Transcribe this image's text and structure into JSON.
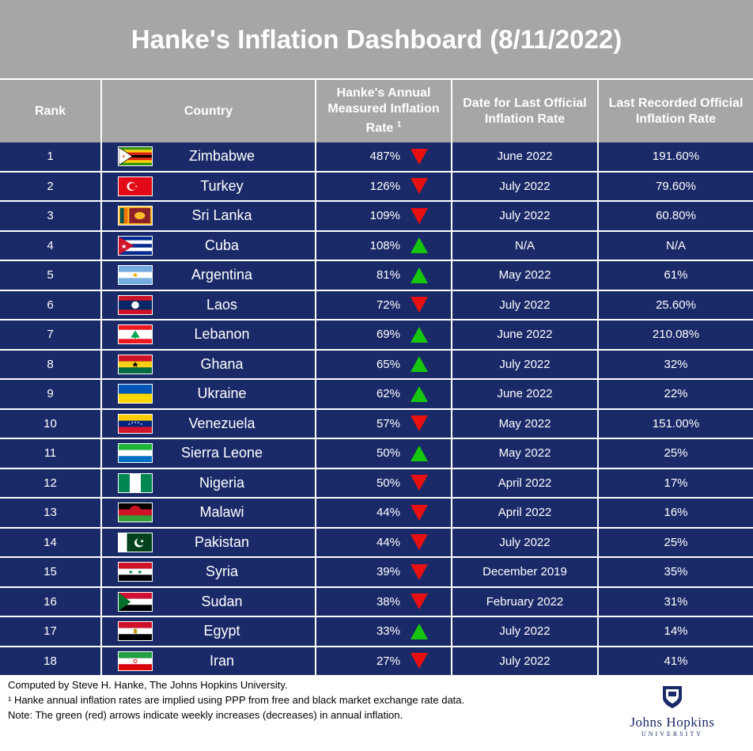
{
  "title": "Hanke's Inflation Dashboard (8/11/2022)",
  "headers": {
    "rank": "Rank",
    "country": "Country",
    "hanke_rate_line1": "Hanke's Annual",
    "hanke_rate_line2": "Measured Inflation",
    "hanke_rate_line3": "Rate",
    "hanke_rate_sup": "1",
    "date_line1": "Date for Last Official",
    "date_line2": "Inflation Rate",
    "official_line1": "Last Recorded Official",
    "official_line2": "Inflation Rate"
  },
  "rows": [
    {
      "rank": "1",
      "country": "Zimbabwe",
      "flag": "zimbabwe-flag",
      "hanke": "487%",
      "trend": "down",
      "date": "June 2022",
      "official": "191.60%"
    },
    {
      "rank": "2",
      "country": "Turkey",
      "flag": "turkey-flag",
      "hanke": "126%",
      "trend": "down",
      "date": "July 2022",
      "official": "79.60%"
    },
    {
      "rank": "3",
      "country": "Sri Lanka",
      "flag": "sri-lanka-flag",
      "hanke": "109%",
      "trend": "down",
      "date": "July 2022",
      "official": "60.80%"
    },
    {
      "rank": "4",
      "country": "Cuba",
      "flag": "cuba-flag",
      "hanke": "108%",
      "trend": "up",
      "date": "N/A",
      "official": "N/A"
    },
    {
      "rank": "5",
      "country": "Argentina",
      "flag": "argentina-flag",
      "hanke": "81%",
      "trend": "up",
      "date": "May 2022",
      "official": "61%"
    },
    {
      "rank": "6",
      "country": "Laos",
      "flag": "laos-flag",
      "hanke": "72%",
      "trend": "down",
      "date": "July 2022",
      "official": "25.60%"
    },
    {
      "rank": "7",
      "country": "Lebanon",
      "flag": "lebanon-flag",
      "hanke": "69%",
      "trend": "up",
      "date": "June 2022",
      "official": "210.08%"
    },
    {
      "rank": "8",
      "country": "Ghana",
      "flag": "ghana-flag",
      "hanke": "65%",
      "trend": "up",
      "date": "July 2022",
      "official": "32%"
    },
    {
      "rank": "9",
      "country": "Ukraine",
      "flag": "ukraine-flag",
      "hanke": "62%",
      "trend": "up",
      "date": "June 2022",
      "official": "22%"
    },
    {
      "rank": "10",
      "country": "Venezuela",
      "flag": "venezuela-flag",
      "hanke": "57%",
      "trend": "down",
      "date": "May 2022",
      "official": "151.00%"
    },
    {
      "rank": "11",
      "country": "Sierra Leone",
      "flag": "sierra-leone-flag",
      "hanke": "50%",
      "trend": "up",
      "date": "May 2022",
      "official": "25%"
    },
    {
      "rank": "12",
      "country": "Nigeria",
      "flag": "nigeria-flag",
      "hanke": "50%",
      "trend": "down",
      "date": "April 2022",
      "official": "17%"
    },
    {
      "rank": "13",
      "country": "Malawi",
      "flag": "malawi-flag",
      "hanke": "44%",
      "trend": "down",
      "date": "April 2022",
      "official": "16%"
    },
    {
      "rank": "14",
      "country": "Pakistan",
      "flag": "pakistan-flag",
      "hanke": "44%",
      "trend": "down",
      "date": "July 2022",
      "official": "25%"
    },
    {
      "rank": "15",
      "country": "Syria",
      "flag": "syria-flag",
      "hanke": "39%",
      "trend": "down",
      "date": "December 2019",
      "official": "35%"
    },
    {
      "rank": "16",
      "country": "Sudan",
      "flag": "sudan-flag",
      "hanke": "38%",
      "trend": "down",
      "date": "February 2022",
      "official": "31%"
    },
    {
      "rank": "17",
      "country": "Egypt",
      "flag": "egypt-flag",
      "hanke": "33%",
      "trend": "up",
      "date": "July 2022",
      "official": "14%"
    },
    {
      "rank": "18",
      "country": "Iran",
      "flag": "iran-flag",
      "hanke": "27%",
      "trend": "down",
      "date": "July 2022",
      "official": "41%"
    }
  ],
  "colors": {
    "header_bg": "#a6a6a6",
    "row_bg": "#1a2a68",
    "arrow_up": "#16c60c",
    "arrow_down": "#e81010"
  },
  "footer": {
    "line1": "Computed by Steve H. Hanke, The Johns Hopkins University.",
    "line2": "¹ Hanke annual inflation rates are implied using PPP from free and black market exchange rate data.",
    "line3": "Note: The green (red) arrows indicate weekly increases (decreases) in annual inflation."
  },
  "logo": {
    "name": "Johns Hopkins",
    "sub": "UNIVERSITY",
    "icon": "university-shield-icon"
  }
}
